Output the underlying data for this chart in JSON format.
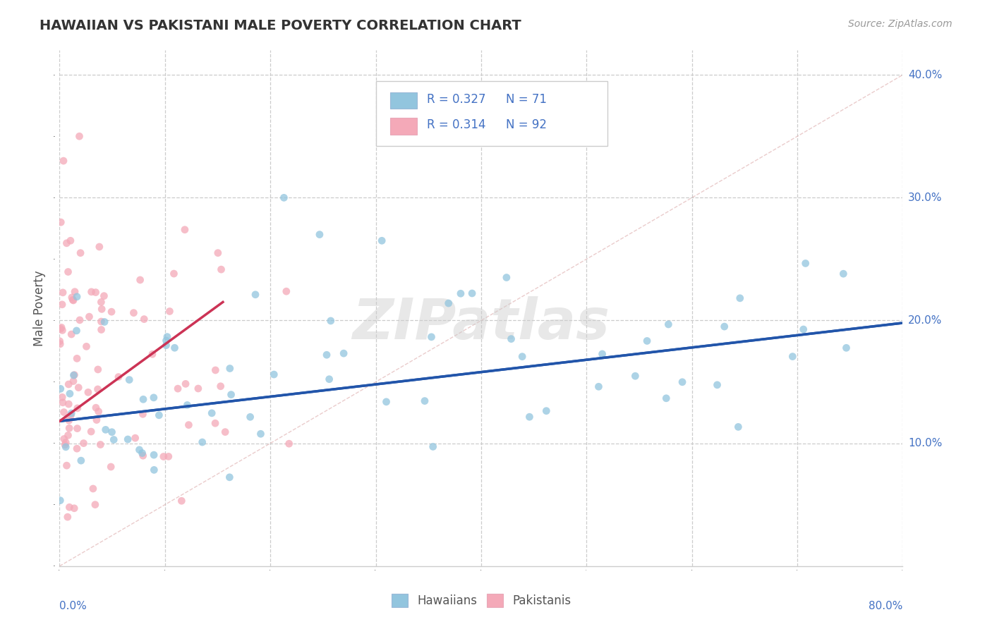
{
  "title": "HAWAIIAN VS PAKISTANI MALE POVERTY CORRELATION CHART",
  "source_text": "Source: ZipAtlas.com",
  "ylabel": "Male Poverty",
  "xlim": [
    0.0,
    0.8
  ],
  "ylim": [
    0.0,
    0.42
  ],
  "x_ticks": [
    0.0,
    0.1,
    0.2,
    0.3,
    0.4,
    0.5,
    0.6,
    0.7,
    0.8
  ],
  "y_ticks": [
    0.1,
    0.2,
    0.3,
    0.4
  ],
  "x_tick_labels": [
    "0.0%",
    "",
    "",
    "",
    "",
    "",
    "",
    "",
    "80.0%"
  ],
  "y_tick_labels": [
    "10.0%",
    "20.0%",
    "30.0%",
    "40.0%"
  ],
  "hawaiian_color": "#92c5de",
  "pakistani_color": "#f4a9b8",
  "hawaiian_trend_color": "#2255aa",
  "pakistani_trend_color": "#cc3355",
  "legend_R_hawaiian": "0.327",
  "legend_N_hawaiian": "71",
  "legend_R_pakistani": "0.314",
  "legend_N_pakistani": "92",
  "watermark": "ZIPatlas",
  "background_color": "#ffffff",
  "hawaiian_trend_x0": 0.0,
  "hawaiian_trend_y0": 0.118,
  "hawaiian_trend_x1": 0.8,
  "hawaiian_trend_y1": 0.198,
  "pakistani_trend_x0": 0.0,
  "pakistani_trend_y0": 0.118,
  "pakistani_trend_x1": 0.155,
  "pakistani_trend_y1": 0.215,
  "ref_line_x0": 0.0,
  "ref_line_y0": 0.0,
  "ref_line_x1": 0.8,
  "ref_line_y1": 0.4
}
